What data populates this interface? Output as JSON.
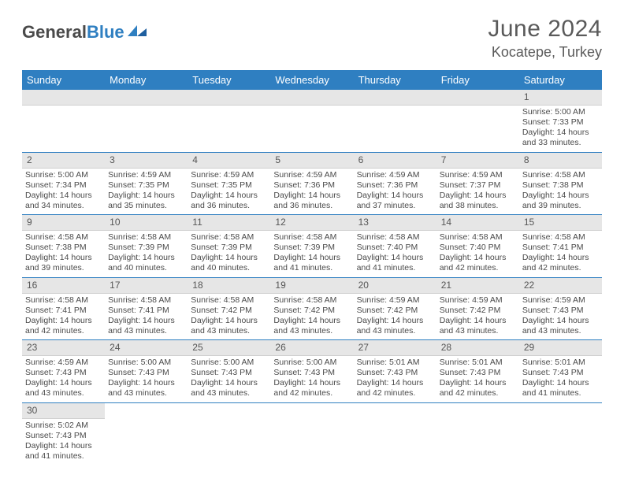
{
  "brand": {
    "part1": "General",
    "part2": "Blue"
  },
  "title": "June 2024",
  "location": "Kocatepe, Turkey",
  "colors": {
    "header_bg": "#2f7fc1",
    "header_text": "#ffffff",
    "daynum_bg": "#e6e6e6",
    "border": "#2f7fc1",
    "text": "#4a4a4a"
  },
  "weekdays": [
    "Sunday",
    "Monday",
    "Tuesday",
    "Wednesday",
    "Thursday",
    "Friday",
    "Saturday"
  ],
  "weeks": [
    [
      null,
      null,
      null,
      null,
      null,
      null,
      {
        "n": "1",
        "sr": "Sunrise: 5:00 AM",
        "ss": "Sunset: 7:33 PM",
        "dl": "Daylight: 14 hours and 33 minutes."
      }
    ],
    [
      {
        "n": "2",
        "sr": "Sunrise: 5:00 AM",
        "ss": "Sunset: 7:34 PM",
        "dl": "Daylight: 14 hours and 34 minutes."
      },
      {
        "n": "3",
        "sr": "Sunrise: 4:59 AM",
        "ss": "Sunset: 7:35 PM",
        "dl": "Daylight: 14 hours and 35 minutes."
      },
      {
        "n": "4",
        "sr": "Sunrise: 4:59 AM",
        "ss": "Sunset: 7:35 PM",
        "dl": "Daylight: 14 hours and 36 minutes."
      },
      {
        "n": "5",
        "sr": "Sunrise: 4:59 AM",
        "ss": "Sunset: 7:36 PM",
        "dl": "Daylight: 14 hours and 36 minutes."
      },
      {
        "n": "6",
        "sr": "Sunrise: 4:59 AM",
        "ss": "Sunset: 7:36 PM",
        "dl": "Daylight: 14 hours and 37 minutes."
      },
      {
        "n": "7",
        "sr": "Sunrise: 4:59 AM",
        "ss": "Sunset: 7:37 PM",
        "dl": "Daylight: 14 hours and 38 minutes."
      },
      {
        "n": "8",
        "sr": "Sunrise: 4:58 AM",
        "ss": "Sunset: 7:38 PM",
        "dl": "Daylight: 14 hours and 39 minutes."
      }
    ],
    [
      {
        "n": "9",
        "sr": "Sunrise: 4:58 AM",
        "ss": "Sunset: 7:38 PM",
        "dl": "Daylight: 14 hours and 39 minutes."
      },
      {
        "n": "10",
        "sr": "Sunrise: 4:58 AM",
        "ss": "Sunset: 7:39 PM",
        "dl": "Daylight: 14 hours and 40 minutes."
      },
      {
        "n": "11",
        "sr": "Sunrise: 4:58 AM",
        "ss": "Sunset: 7:39 PM",
        "dl": "Daylight: 14 hours and 40 minutes."
      },
      {
        "n": "12",
        "sr": "Sunrise: 4:58 AM",
        "ss": "Sunset: 7:39 PM",
        "dl": "Daylight: 14 hours and 41 minutes."
      },
      {
        "n": "13",
        "sr": "Sunrise: 4:58 AM",
        "ss": "Sunset: 7:40 PM",
        "dl": "Daylight: 14 hours and 41 minutes."
      },
      {
        "n": "14",
        "sr": "Sunrise: 4:58 AM",
        "ss": "Sunset: 7:40 PM",
        "dl": "Daylight: 14 hours and 42 minutes."
      },
      {
        "n": "15",
        "sr": "Sunrise: 4:58 AM",
        "ss": "Sunset: 7:41 PM",
        "dl": "Daylight: 14 hours and 42 minutes."
      }
    ],
    [
      {
        "n": "16",
        "sr": "Sunrise: 4:58 AM",
        "ss": "Sunset: 7:41 PM",
        "dl": "Daylight: 14 hours and 42 minutes."
      },
      {
        "n": "17",
        "sr": "Sunrise: 4:58 AM",
        "ss": "Sunset: 7:41 PM",
        "dl": "Daylight: 14 hours and 43 minutes."
      },
      {
        "n": "18",
        "sr": "Sunrise: 4:58 AM",
        "ss": "Sunset: 7:42 PM",
        "dl": "Daylight: 14 hours and 43 minutes."
      },
      {
        "n": "19",
        "sr": "Sunrise: 4:58 AM",
        "ss": "Sunset: 7:42 PM",
        "dl": "Daylight: 14 hours and 43 minutes."
      },
      {
        "n": "20",
        "sr": "Sunrise: 4:59 AM",
        "ss": "Sunset: 7:42 PM",
        "dl": "Daylight: 14 hours and 43 minutes."
      },
      {
        "n": "21",
        "sr": "Sunrise: 4:59 AM",
        "ss": "Sunset: 7:42 PM",
        "dl": "Daylight: 14 hours and 43 minutes."
      },
      {
        "n": "22",
        "sr": "Sunrise: 4:59 AM",
        "ss": "Sunset: 7:43 PM",
        "dl": "Daylight: 14 hours and 43 minutes."
      }
    ],
    [
      {
        "n": "23",
        "sr": "Sunrise: 4:59 AM",
        "ss": "Sunset: 7:43 PM",
        "dl": "Daylight: 14 hours and 43 minutes."
      },
      {
        "n": "24",
        "sr": "Sunrise: 5:00 AM",
        "ss": "Sunset: 7:43 PM",
        "dl": "Daylight: 14 hours and 43 minutes."
      },
      {
        "n": "25",
        "sr": "Sunrise: 5:00 AM",
        "ss": "Sunset: 7:43 PM",
        "dl": "Daylight: 14 hours and 43 minutes."
      },
      {
        "n": "26",
        "sr": "Sunrise: 5:00 AM",
        "ss": "Sunset: 7:43 PM",
        "dl": "Daylight: 14 hours and 42 minutes."
      },
      {
        "n": "27",
        "sr": "Sunrise: 5:01 AM",
        "ss": "Sunset: 7:43 PM",
        "dl": "Daylight: 14 hours and 42 minutes."
      },
      {
        "n": "28",
        "sr": "Sunrise: 5:01 AM",
        "ss": "Sunset: 7:43 PM",
        "dl": "Daylight: 14 hours and 42 minutes."
      },
      {
        "n": "29",
        "sr": "Sunrise: 5:01 AM",
        "ss": "Sunset: 7:43 PM",
        "dl": "Daylight: 14 hours and 41 minutes."
      }
    ],
    [
      {
        "n": "30",
        "sr": "Sunrise: 5:02 AM",
        "ss": "Sunset: 7:43 PM",
        "dl": "Daylight: 14 hours and 41 minutes."
      },
      null,
      null,
      null,
      null,
      null,
      null
    ]
  ]
}
